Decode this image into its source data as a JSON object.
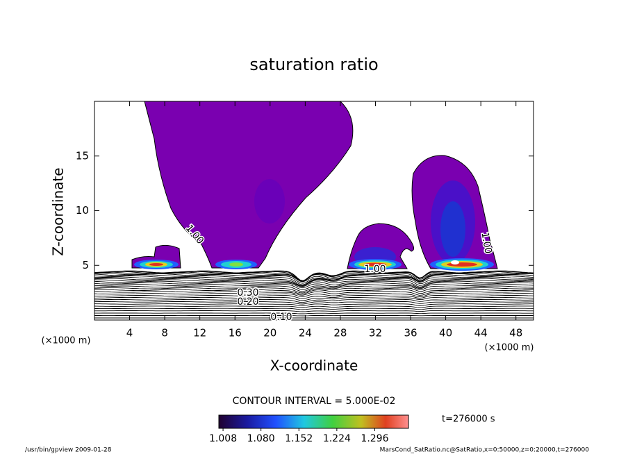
{
  "chart_data": {
    "type": "contour",
    "title": "saturation ratio",
    "x_label": "X-coordinate",
    "y_label": "Z-coordinate",
    "x_unit": "(×1000 m)",
    "y_unit": "(×1000 m)",
    "xlim": [
      0,
      50
    ],
    "ylim": [
      0,
      20
    ],
    "xticks": [
      4,
      8,
      12,
      16,
      20,
      24,
      28,
      32,
      36,
      40,
      44,
      48
    ],
    "yticks": [
      5,
      10,
      15
    ],
    "contour_labels": [
      "1.00",
      "1.00",
      "1.00",
      "0.10",
      "0.20",
      "0.30"
    ],
    "contour_interval_label": "CONTOUR INTERVAL = 5.000E-02",
    "time_label": "t=276000 s",
    "colorbar": {
      "clim": [
        1.0,
        1.36
      ],
      "ticks": [
        1.008,
        {
          "value": 1.08,
          "label": "1.080"
        },
        1.152,
        1.224,
        1.296
      ]
    }
  },
  "footer": {
    "left": "/usr/bin/gpview   2009-01-28",
    "right": "MarsCond_SatRatio.nc@SatRatio,x=0:50000,z=0:20000,t=276000"
  }
}
